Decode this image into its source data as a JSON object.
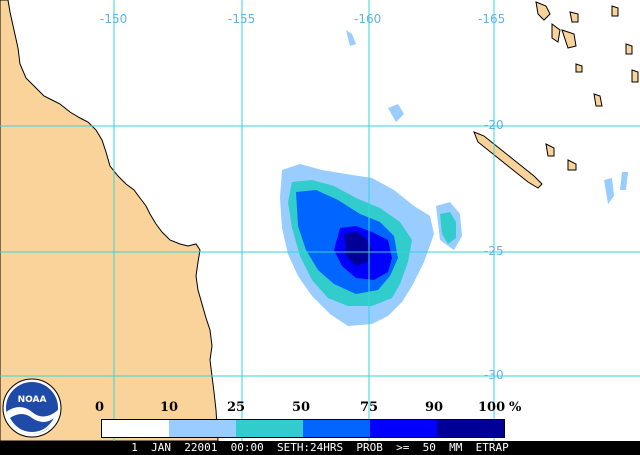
{
  "map": {
    "longitude_labels": [
      "-150",
      "-155",
      "-160",
      "-165"
    ],
    "latitude_labels": [
      "-20",
      "-25",
      "-30"
    ],
    "colors": {
      "land": "#fad39b",
      "ocean": "#ffffff",
      "grid": "#33d6dd",
      "coast": "#000000",
      "labels": "#5fb4e8"
    }
  },
  "legend": {
    "ticks": [
      "0",
      "10",
      "25",
      "50",
      "75",
      "90",
      "100"
    ],
    "unit": "%",
    "bins": [
      {
        "range": "0-10",
        "color": "#ffffff"
      },
      {
        "range": "10-25",
        "color": "#99ccff"
      },
      {
        "range": "25-50",
        "color": "#33cccc"
      },
      {
        "range": "50-75",
        "color": "#0066ff"
      },
      {
        "range": "75-90",
        "color": "#0000ff"
      },
      {
        "range": "90-100",
        "color": "#000099"
      }
    ]
  },
  "caption": "1  JAN  22001  00:00  SETH:24HRS  PROB  >=  50  MM  ETRAP",
  "logo": {
    "text": "NOAA"
  }
}
